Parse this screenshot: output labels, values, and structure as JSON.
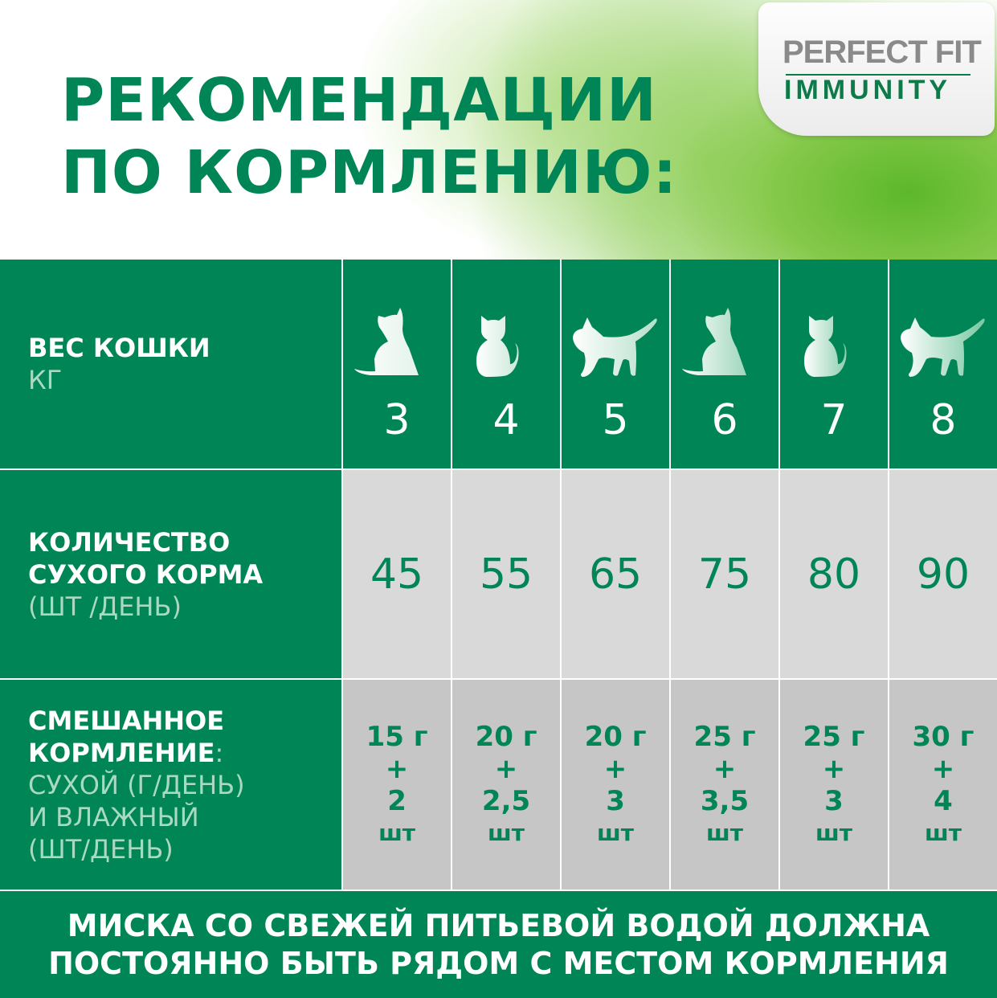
{
  "title": {
    "line1": "РЕКОМЕНДАЦИИ",
    "line2": "ПО КОРМЛЕНИЮ:"
  },
  "logo": {
    "line1": "PERFECT FIT",
    "line2": "IMMUNITY"
  },
  "colors": {
    "brand_green": "#008556",
    "row_light": "#d9d9d9",
    "row_dark": "#c6c6c6",
    "label_subtext": "#a9d9c1"
  },
  "rows": {
    "weight": {
      "title": "ВЕС КОШКИ",
      "unit": "КГ"
    },
    "dry": {
      "title1": "КОЛИЧЕСТВО",
      "title2": "СУХОГО КОРМА",
      "unit": "(ШТ /ДЕНЬ)"
    },
    "mixed": {
      "title1": "СМЕШАННОЕ",
      "title2": "КОРМЛЕНИЕ",
      "colon": ":",
      "sub1": "СУХОЙ (Г/ДЕНЬ)",
      "sub2": "И ВЛАЖНЫЙ",
      "sub3": "(ШТ/ДЕНЬ)"
    }
  },
  "columns": [
    {
      "weight": "3",
      "cat_icon": "cat-sitting-back-icon",
      "dry": "45",
      "mixed_dry": "15 г",
      "plus": "+",
      "mixed_wet": "2",
      "wet_unit": "шт"
    },
    {
      "weight": "4",
      "cat_icon": "cat-sitting-front-icon",
      "dry": "55",
      "mixed_dry": "20 г",
      "plus": "+",
      "mixed_wet": "2,5",
      "wet_unit": "шт"
    },
    {
      "weight": "5",
      "cat_icon": "cat-walking-icon",
      "dry": "65",
      "mixed_dry": "20 г",
      "plus": "+",
      "mixed_wet": "3",
      "wet_unit": "шт"
    },
    {
      "weight": "6",
      "cat_icon": "cat-sitting-back-icon",
      "dry": "75",
      "mixed_dry": "25 г",
      "plus": "+",
      "mixed_wet": "3,5",
      "wet_unit": "шт"
    },
    {
      "weight": "7",
      "cat_icon": "cat-sitting-front-icon",
      "dry": "80",
      "mixed_dry": "25 г",
      "plus": "+",
      "mixed_wet": "3",
      "wet_unit": "шт"
    },
    {
      "weight": "8",
      "cat_icon": "cat-walking-icon",
      "dry": "90",
      "mixed_dry": "30 г",
      "plus": "+",
      "mixed_wet": "4",
      "wet_unit": "шт"
    }
  ],
  "footer": {
    "line1": "МИСКА СО СВЕЖЕЙ ПИТЬЕВОЙ ВОДОЙ ДОЛЖНА",
    "line2": "ПОСТОЯННО БЫТЬ РЯДОМ С МЕСТОМ КОРМЛЕНИЯ"
  }
}
